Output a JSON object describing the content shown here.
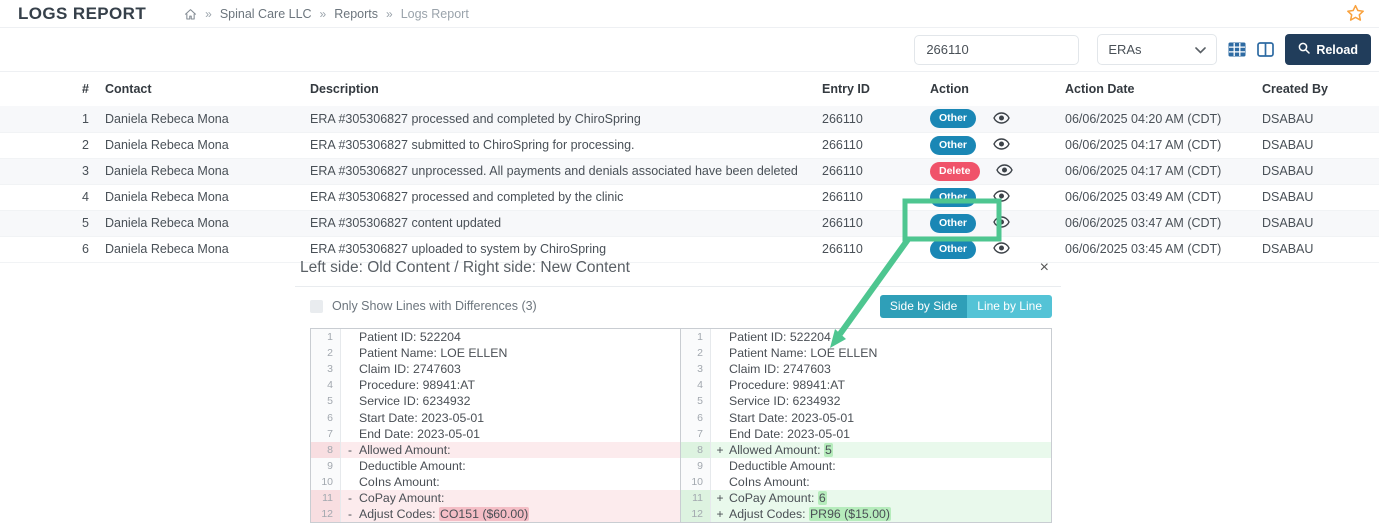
{
  "page": {
    "title": "LOGS REPORT",
    "breadcrumb": {
      "separator": "»",
      "items": [
        "Spinal Care LLC",
        "Reports",
        "Logs Report"
      ]
    }
  },
  "toolbar": {
    "search_value": "266110",
    "filter_selected": "ERAs",
    "reload_label": "Reload",
    "icons": [
      "table-grid-icon",
      "columns-icon",
      "search-icon",
      "favorite-star-icon"
    ]
  },
  "table": {
    "headers": [
      "#",
      "Contact",
      "Description",
      "Entry ID",
      "Action",
      "Action Date",
      "Created By"
    ],
    "rows": [
      {
        "num": "1",
        "contact": "Daniela Rebeca Mona",
        "description": "ERA #305306827 processed and completed by ChiroSpring",
        "entry_id": "266110",
        "action": "Other",
        "date": "06/06/2025 04:20 AM (CDT)",
        "created_by": "DSABAU"
      },
      {
        "num": "2",
        "contact": "Daniela Rebeca Mona",
        "description": "ERA #305306827 submitted to ChiroSpring for processing.",
        "entry_id": "266110",
        "action": "Other",
        "date": "06/06/2025 04:17 AM (CDT)",
        "created_by": "DSABAU"
      },
      {
        "num": "3",
        "contact": "Daniela Rebeca Mona",
        "description": "ERA #305306827 unprocessed. All payments and denials associated have been deleted",
        "entry_id": "266110",
        "action": "Delete",
        "date": "06/06/2025 04:17 AM (CDT)",
        "created_by": "DSABAU"
      },
      {
        "num": "4",
        "contact": "Daniela Rebeca Mona",
        "description": "ERA #305306827 processed and completed by the clinic",
        "entry_id": "266110",
        "action": "Other",
        "date": "06/06/2025 03:49 AM (CDT)",
        "created_by": "DSABAU"
      },
      {
        "num": "5",
        "contact": "Daniela Rebeca Mona",
        "description": "ERA #305306827 content updated",
        "entry_id": "266110",
        "action": "Other",
        "date": "06/06/2025 03:47 AM (CDT)",
        "created_by": "DSABAU"
      },
      {
        "num": "6",
        "contact": "Daniela Rebeca Mona",
        "description": "ERA #305306827 uploaded to system by ChiroSpring",
        "entry_id": "266110",
        "action": "Other",
        "date": "06/06/2025 03:45 AM (CDT)",
        "created_by": "DSABAU"
      }
    ]
  },
  "diff_panel": {
    "title": "Left side: Old Content / Right side: New Content",
    "close_icon": "×",
    "only_show_label": "Only Show Lines with Differences (3)",
    "view_toggle": {
      "side_by_side": "Side by Side",
      "line_by_line": "Line by Line",
      "active": "Side by Side"
    },
    "left_lines": [
      {
        "num": "1",
        "marker": "",
        "text": "Patient ID: 522204",
        "mark": "",
        "type": ""
      },
      {
        "num": "2",
        "marker": "",
        "text": "Patient Name: LOE ELLEN",
        "mark": "",
        "type": ""
      },
      {
        "num": "3",
        "marker": "",
        "text": "Claim ID: 2747603",
        "mark": "",
        "type": ""
      },
      {
        "num": "4",
        "marker": "",
        "text": "Procedure: 98941:AT",
        "mark": "",
        "type": ""
      },
      {
        "num": "5",
        "marker": "",
        "text": "Service ID: 6234932",
        "mark": "",
        "type": ""
      },
      {
        "num": "6",
        "marker": "",
        "text": "Start Date: 2023-05-01",
        "mark": "",
        "type": ""
      },
      {
        "num": "7",
        "marker": "",
        "text": "End Date: 2023-05-01",
        "mark": "",
        "type": ""
      },
      {
        "num": "8",
        "marker": "-",
        "text": "Allowed Amount:",
        "mark": "",
        "type": "removed"
      },
      {
        "num": "9",
        "marker": "",
        "text": "Deductible Amount:",
        "mark": "",
        "type": ""
      },
      {
        "num": "10",
        "marker": "",
        "text": "CoIns Amount:",
        "mark": "",
        "type": ""
      },
      {
        "num": "11",
        "marker": "-",
        "text": "CoPay Amount:",
        "mark": "",
        "type": "removed"
      },
      {
        "num": "12",
        "marker": "-",
        "text": "Adjust Codes: ",
        "mark": "CO151 ($60.00)",
        "type": "removed"
      }
    ],
    "right_lines": [
      {
        "num": "1",
        "marker": "",
        "text": "Patient ID: 522204",
        "mark": "",
        "type": ""
      },
      {
        "num": "2",
        "marker": "",
        "text": "Patient Name: LOE ELLEN",
        "mark": "",
        "type": ""
      },
      {
        "num": "3",
        "marker": "",
        "text": "Claim ID: 2747603",
        "mark": "",
        "type": ""
      },
      {
        "num": "4",
        "marker": "",
        "text": "Procedure: 98941:AT",
        "mark": "",
        "type": ""
      },
      {
        "num": "5",
        "marker": "",
        "text": "Service ID: 6234932",
        "mark": "",
        "type": ""
      },
      {
        "num": "6",
        "marker": "",
        "text": "Start Date: 2023-05-01",
        "mark": "",
        "type": ""
      },
      {
        "num": "7",
        "marker": "",
        "text": "End Date: 2023-05-01",
        "mark": "",
        "type": ""
      },
      {
        "num": "8",
        "marker": "+",
        "text": "Allowed Amount: ",
        "mark": "5",
        "type": "added"
      },
      {
        "num": "9",
        "marker": "",
        "text": "Deductible Amount:",
        "mark": "",
        "type": ""
      },
      {
        "num": "10",
        "marker": "",
        "text": "CoIns Amount:",
        "mark": "",
        "type": ""
      },
      {
        "num": "11",
        "marker": "+",
        "text": "CoPay Amount: ",
        "mark": "6",
        "type": "added"
      },
      {
        "num": "12",
        "marker": "+",
        "text": "Adjust Codes: ",
        "mark": "PR96 ($15.00)",
        "type": "added"
      }
    ]
  },
  "annotation": {
    "shape": "highlight-box-with-arrow",
    "target": "row-5-action-cell",
    "color": "#4ec690"
  },
  "colors": {
    "badge_other": "#1a87b5",
    "badge_delete": "#f0536a",
    "reload_button": "#213d5b",
    "toggle_active": "#2f9fb8",
    "toggle_inactive": "#54c3d6",
    "star": "#f9a13c",
    "removed_line": "#fcebed",
    "removed_mark": "#f4bec6",
    "added_line": "#e9f9ec",
    "added_mark": "#b6ecbc",
    "annotation_green": "#4ec690"
  }
}
